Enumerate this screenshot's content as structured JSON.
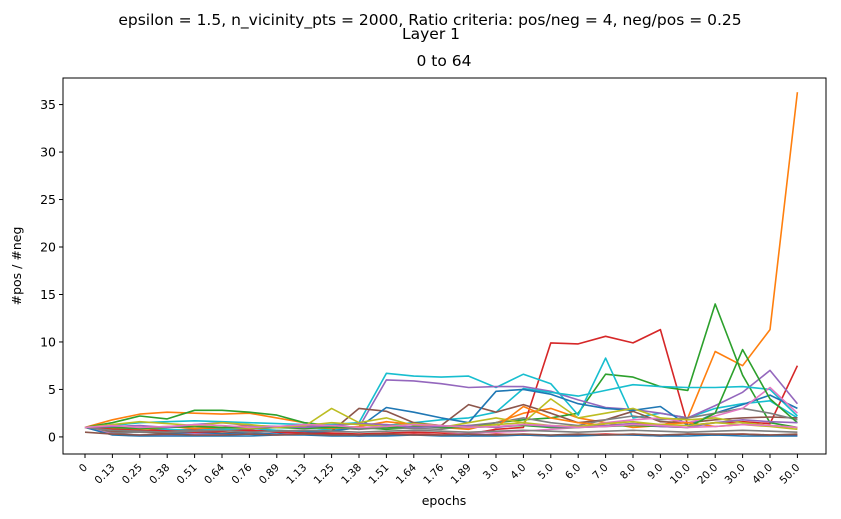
{
  "chart_data": {
    "type": "line",
    "suptitle": "epsilon = 1.5, n_vicinity_pts = 2000, Ratio criteria: pos/neg = 4, neg/pos = 0.25",
    "title_line1": "Layer 1",
    "title_line2": "0 to 64",
    "xlabel": "epochs",
    "ylabel": "#pos / #neg",
    "categories": [
      "0",
      "0.13",
      "0.25",
      "0.38",
      "0.51",
      "0.64",
      "0.76",
      "0.89",
      "1.13",
      "1.25",
      "1.38",
      "1.51",
      "1.64",
      "1.76",
      "1.89",
      "3.0",
      "4.0",
      "5.0",
      "6.0",
      "7.0",
      "8.0",
      "9.0",
      "10.0",
      "20.0",
      "30.0",
      "40.0",
      "50.0"
    ],
    "ylim": [
      -1.8,
      37.8
    ],
    "yticks": [
      0,
      5,
      10,
      15,
      20,
      25,
      30,
      35
    ],
    "grid": false,
    "legend": "none",
    "series": [
      {
        "color": "#ff7f0e",
        "values": [
          1.0,
          1.8,
          2.4,
          2.6,
          2.5,
          2.4,
          2.5,
          2.0,
          1.5,
          1.0,
          0.8,
          1.2,
          1.5,
          1.0,
          0.8,
          1.5,
          2.5,
          3.0,
          2.0,
          1.5,
          1.0,
          1.2,
          2.0,
          9.0,
          7.5,
          11.3,
          36.3
        ]
      },
      {
        "color": "#d62728",
        "values": [
          1.0,
          0.8,
          0.9,
          0.7,
          0.8,
          0.9,
          0.6,
          0.7,
          0.5,
          0.4,
          0.3,
          0.4,
          0.5,
          0.4,
          0.3,
          0.8,
          1.0,
          9.9,
          9.8,
          10.6,
          9.9,
          11.3,
          1.2,
          1.5,
          1.6,
          1.4,
          7.5
        ]
      },
      {
        "color": "#2ca02c",
        "values": [
          1.0,
          1.5,
          2.2,
          1.9,
          2.8,
          2.8,
          2.6,
          2.3,
          1.5,
          1.2,
          1.0,
          0.8,
          1.0,
          1.2,
          1.0,
          1.5,
          1.8,
          2.0,
          2.5,
          6.6,
          6.3,
          5.3,
          4.9,
          14.0,
          6.5,
          1.5,
          1.0
        ]
      },
      {
        "color": "#17becf",
        "values": [
          1.0,
          1.2,
          1.5,
          1.6,
          1.7,
          1.6,
          1.5,
          1.4,
          1.3,
          1.3,
          1.5,
          6.7,
          6.4,
          6.3,
          6.4,
          5.2,
          6.6,
          5.6,
          2.3,
          8.3,
          2.0,
          2.5,
          2.0,
          3.0,
          3.5,
          3.8,
          2.0
        ]
      },
      {
        "color": "#9467bd",
        "values": [
          1.0,
          0.5,
          0.6,
          0.5,
          0.7,
          0.8,
          0.6,
          0.5,
          0.6,
          0.8,
          1.0,
          6.0,
          5.9,
          5.6,
          5.2,
          5.3,
          5.3,
          4.8,
          3.9,
          3.1,
          2.9,
          2.5,
          2.0,
          3.3,
          4.7,
          7.0,
          3.5
        ]
      },
      {
        "color": "#17becf",
        "values": [
          1.0,
          0.9,
          1.0,
          0.8,
          0.7,
          0.8,
          0.9,
          0.7,
          0.6,
          0.8,
          0.9,
          1.2,
          1.5,
          1.8,
          2.0,
          2.6,
          5.1,
          4.7,
          4.3,
          4.9,
          5.5,
          5.3,
          5.2,
          5.2,
          5.3,
          5.0,
          2.2
        ]
      },
      {
        "color": "#8c564b",
        "values": [
          1.0,
          0.6,
          0.5,
          0.4,
          0.5,
          0.4,
          0.5,
          0.6,
          0.7,
          0.6,
          3.0,
          2.7,
          1.5,
          1.2,
          3.4,
          2.6,
          3.4,
          2.5,
          1.5,
          1.8,
          2.7,
          1.6,
          1.5,
          1.8,
          2.0,
          2.1,
          2.0
        ]
      },
      {
        "color": "#1f77b4",
        "values": [
          1.0,
          0.3,
          0.2,
          0.3,
          0.4,
          0.3,
          0.4,
          0.3,
          0.5,
          0.6,
          1.0,
          3.1,
          2.6,
          2.0,
          1.5,
          4.8,
          5.0,
          4.5,
          3.5,
          3.0,
          2.8,
          3.2,
          1.2,
          2.5,
          3.4,
          4.4,
          3.0
        ]
      },
      {
        "color": "#7f7f7f",
        "values": [
          1.0,
          0.4,
          0.5,
          0.6,
          0.7,
          0.6,
          0.8,
          1.0,
          1.2,
          1.0,
          0.8,
          1.0,
          0.9,
          0.8,
          1.2,
          1.5,
          2.0,
          1.5,
          1.2,
          1.8,
          2.2,
          1.8,
          2.0,
          2.5,
          3.0,
          2.5,
          1.8
        ]
      },
      {
        "color": "#e377c2",
        "values": [
          1.0,
          0.3,
          0.2,
          0.2,
          0.3,
          0.2,
          0.3,
          0.2,
          0.4,
          0.2,
          0.1,
          0.2,
          0.3,
          0.2,
          0.4,
          0.5,
          0.6,
          0.8,
          1.0,
          1.5,
          1.8,
          2.0,
          1.5,
          2.2,
          3.0,
          5.2,
          2.5
        ]
      },
      {
        "color": "#bcbd22",
        "values": [
          1.0,
          0.7,
          0.8,
          1.0,
          1.2,
          1.0,
          0.9,
          1.0,
          1.1,
          3.0,
          1.5,
          2.0,
          1.2,
          1.0,
          1.5,
          2.0,
          1.5,
          4.0,
          2.0,
          2.5,
          3.0,
          2.0,
          1.8,
          2.0,
          1.5,
          1.2,
          1.0
        ]
      },
      {
        "color": "#ff7f0e",
        "values": [
          1.0,
          0.9,
          1.0,
          1.1,
          0.9,
          1.0,
          1.2,
          1.1,
          1.0,
          0.9,
          1.1,
          1.6,
          1.3,
          1.1,
          1.2,
          1.0,
          3.2,
          2.0,
          1.5,
          1.2,
          1.4,
          1.3,
          1.5,
          1.1,
          1.3,
          1.2,
          1.0
        ]
      },
      {
        "color": "#2ca02c",
        "values": [
          1.0,
          1.0,
          0.9,
          1.0,
          1.1,
          1.0,
          1.0,
          1.0,
          0.9,
          1.0,
          1.0,
          1.0,
          1.1,
          1.0,
          1.0,
          1.1,
          1.2,
          1.0,
          1.0,
          1.1,
          1.2,
          1.1,
          1.0,
          2.5,
          9.2,
          4.0,
          1.5
        ]
      },
      {
        "color": "#d62728",
        "values": [
          1.0,
          0.8,
          0.7,
          0.6,
          0.5,
          0.6,
          0.7,
          0.5,
          0.4,
          0.3,
          0.1,
          0.2,
          0.3,
          0.2,
          0.1,
          0.3,
          0.2,
          0.1,
          0.2,
          0.3,
          0.2,
          0.1,
          0.3,
          0.2,
          0.3,
          0.2,
          0.2
        ]
      },
      {
        "color": "#1f77b4",
        "values": [
          1.0,
          0.2,
          0.1,
          0.1,
          0.1,
          0.1,
          0.1,
          0.2,
          0.2,
          0.1,
          0.1,
          0.1,
          0.2,
          0.1,
          0.1,
          0.1,
          0.2,
          0.1,
          0.1,
          0.2,
          0.2,
          0.1,
          0.1,
          0.2,
          0.1,
          0.1,
          0.1
        ]
      },
      {
        "color": "#8c564b",
        "values": [
          0.5,
          0.3,
          0.2,
          0.3,
          0.2,
          0.2,
          0.3,
          0.2,
          0.3,
          0.2,
          0.2,
          0.3,
          0.2,
          0.2,
          0.3,
          0.2,
          0.3,
          0.2,
          0.3,
          0.2,
          0.3,
          0.2,
          0.3,
          0.3,
          0.3,
          0.2,
          0.3
        ]
      },
      {
        "color": "#9467bd",
        "values": [
          1.0,
          1.1,
          1.2,
          1.0,
          1.3,
          1.5,
          1.2,
          1.1,
          1.0,
          1.2,
          1.4,
          1.3,
          1.0,
          1.1,
          1.2,
          1.0,
          1.3,
          1.1,
          1.0,
          1.2,
          1.4,
          1.1,
          1.0,
          1.5,
          1.8,
          1.6,
          1.5
        ]
      },
      {
        "color": "#7f7f7f",
        "values": [
          1.0,
          0.7,
          0.6,
          0.5,
          0.6,
          0.7,
          0.5,
          0.6,
          0.7,
          0.6,
          0.5,
          0.6,
          0.7,
          0.6,
          0.5,
          0.6,
          0.7,
          0.6,
          0.5,
          0.6,
          0.7,
          0.6,
          0.5,
          0.6,
          0.7,
          0.6,
          0.5
        ]
      },
      {
        "color": "#bcbd22",
        "values": [
          1.0,
          1.3,
          1.6,
          1.4,
          1.2,
          1.5,
          1.3,
          1.0,
          1.2,
          1.5,
          1.3,
          1.1,
          1.4,
          1.2,
          1.0,
          1.3,
          1.5,
          1.2,
          1.1,
          1.4,
          1.6,
          1.3,
          1.2,
          1.5,
          1.3,
          1.1,
          0.8
        ]
      },
      {
        "color": "#e377c2",
        "values": [
          1.0,
          1.2,
          1.0,
          1.1,
          1.3,
          1.2,
          1.0,
          1.1,
          1.3,
          1.2,
          1.0,
          1.1,
          1.3,
          1.2,
          1.0,
          1.1,
          1.3,
          1.2,
          1.0,
          1.1,
          1.3,
          1.2,
          1.0,
          1.1,
          1.3,
          1.2,
          1.0
        ]
      }
    ]
  }
}
